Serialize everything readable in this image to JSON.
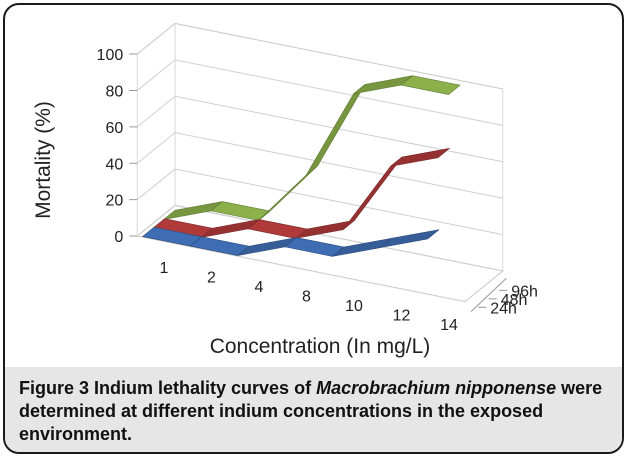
{
  "chart_data": {
    "type": "line",
    "style": "3d-ribbon",
    "xlabel": "Concentration (In mg/L)",
    "ylabel": "Mortality (%)",
    "categories": [
      "1",
      "2",
      "4",
      "8",
      "10",
      "12",
      "14"
    ],
    "yticks": [
      0,
      20,
      40,
      60,
      80,
      100
    ],
    "ylim": [
      0,
      100
    ],
    "grid": true,
    "legend": "none",
    "depth_labels": [
      "96h",
      "48h",
      "24h"
    ],
    "series": [
      {
        "name": "24h",
        "color": "#3f6db3",
        "values": [
          0,
          0,
          0,
          10,
          10,
          20,
          30
        ]
      },
      {
        "name": "48h",
        "color": "#b03a3a",
        "values": [
          0,
          0,
          10,
          10,
          20,
          60,
          70
        ]
      },
      {
        "name": "96h",
        "color": "#8cb04a",
        "values": [
          0,
          10,
          10,
          40,
          90,
          100,
          100
        ]
      }
    ]
  },
  "caption": {
    "label": "Figure 3",
    "text_before": " Indium lethality curves of ",
    "species": "Macrobrachium nipponense",
    "text_after": " were determined at different indium concentrations in the exposed environment."
  }
}
